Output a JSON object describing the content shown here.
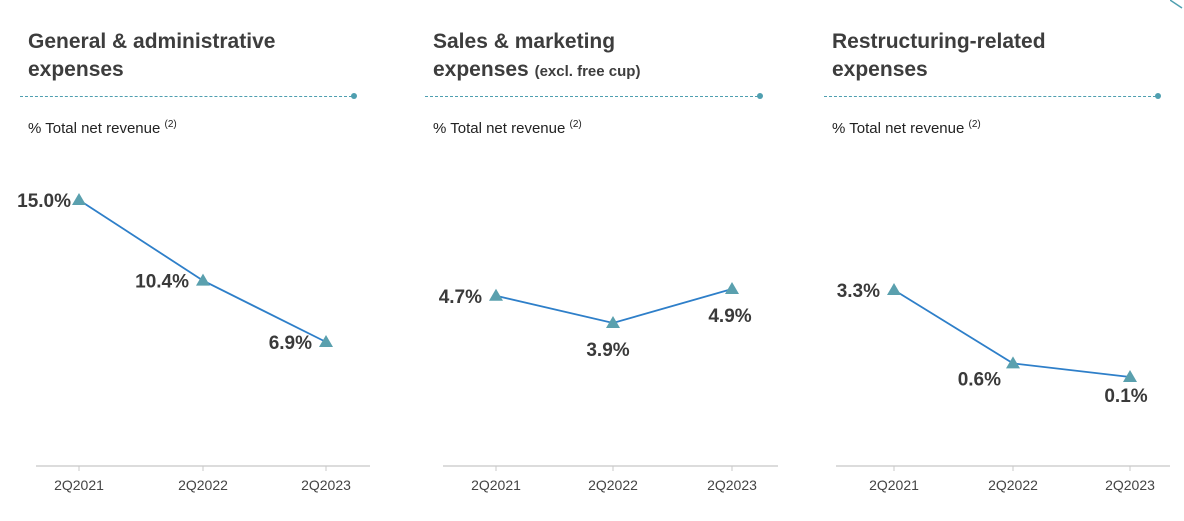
{
  "accent_color": "#4f9fb0",
  "line_color": "#2e7fc9",
  "marker_color": "#5aa0ae",
  "chart_data": [
    {
      "type": "line",
      "title": "General & administrative expenses",
      "title_lines": [
        "General & administrative",
        "expenses"
      ],
      "title_note": "",
      "subtitle": "% Total net revenue",
      "subtitle_note": "(2)",
      "categories": [
        "2Q2021",
        "2Q2022",
        "2Q2023"
      ],
      "values": [
        15.0,
        10.4,
        6.9
      ],
      "data_labels": [
        "15.0%",
        "10.4%",
        "6.9%"
      ],
      "marker": "triangle",
      "grid": false
    },
    {
      "type": "line",
      "title": "Sales & marketing expenses (excl. free cup)",
      "title_lines": [
        "Sales & marketing",
        "expenses"
      ],
      "title_note": "(excl. free cup)",
      "subtitle": "% Total net revenue",
      "subtitle_note": "(2)",
      "categories": [
        "2Q2021",
        "2Q2022",
        "2Q2023"
      ],
      "values": [
        4.7,
        3.9,
        4.9
      ],
      "data_labels": [
        "4.7%",
        "3.9%",
        "4.9%"
      ],
      "marker": "triangle",
      "grid": false
    },
    {
      "type": "line",
      "title": "Restructuring-related expenses",
      "title_lines": [
        "Restructuring-related",
        "expenses"
      ],
      "title_note": "",
      "subtitle": "% Total net revenue",
      "subtitle_note": "(2)",
      "categories": [
        "2Q2021",
        "2Q2022",
        "2Q2023"
      ],
      "values": [
        3.3,
        0.6,
        0.1
      ],
      "data_labels": [
        "3.3%",
        "0.6%",
        "0.1%"
      ],
      "marker": "triangle",
      "grid": false
    }
  ]
}
